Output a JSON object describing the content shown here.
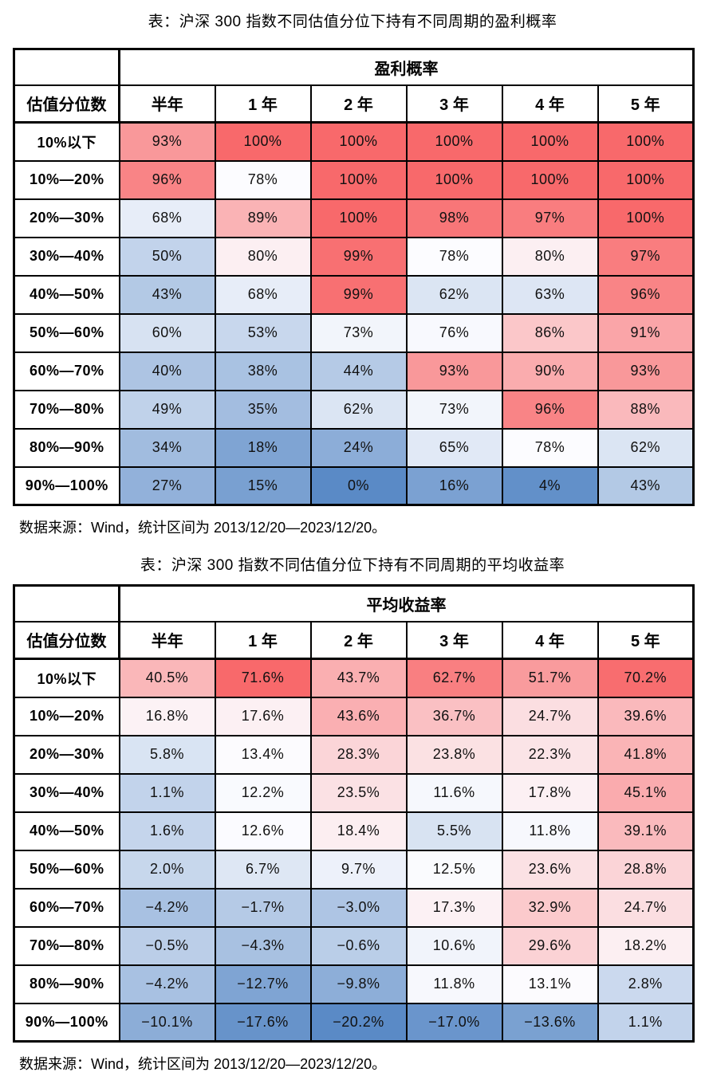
{
  "page": {
    "background": "#ffffff"
  },
  "heatmap_scale": {
    "min_color": "#5A8AC6",
    "mid_color": "#FCFCFF",
    "max_color": "#F8696B",
    "midpoint": "median"
  },
  "chart_data": [
    {
      "type": "heatmap",
      "title": "表：沪深 300 指数不同估值分位下持有不同周期的盈利概率",
      "group_header": "盈利概率",
      "corner_label": "",
      "row_header_label": "估值分位数",
      "columns": [
        "半年",
        "1 年",
        "2 年",
        "3 年",
        "4 年",
        "5 年"
      ],
      "rows": [
        "10%以下",
        "10%—20%",
        "20%—30%",
        "30%—40%",
        "40%—50%",
        "50%—60%",
        "60%—70%",
        "70%—80%",
        "80%—90%",
        "90%—100%"
      ],
      "values": [
        [
          93,
          100,
          100,
          100,
          100,
          100
        ],
        [
          96,
          78,
          100,
          100,
          100,
          100
        ],
        [
          68,
          89,
          100,
          98,
          97,
          100
        ],
        [
          50,
          80,
          99,
          78,
          80,
          97
        ],
        [
          43,
          68,
          99,
          62,
          63,
          96
        ],
        [
          60,
          53,
          73,
          76,
          86,
          91
        ],
        [
          40,
          38,
          44,
          93,
          90,
          93
        ],
        [
          49,
          35,
          62,
          73,
          96,
          88
        ],
        [
          34,
          18,
          24,
          65,
          78,
          62
        ],
        [
          27,
          15,
          0,
          16,
          4,
          43
        ]
      ],
      "labels": [
        [
          "93%",
          "100%",
          "100%",
          "100%",
          "100%",
          "100%"
        ],
        [
          "96%",
          "78%",
          "100%",
          "100%",
          "100%",
          "100%"
        ],
        [
          "68%",
          "89%",
          "100%",
          "98%",
          "97%",
          "100%"
        ],
        [
          "50%",
          "80%",
          "99%",
          "78%",
          "80%",
          "97%"
        ],
        [
          "43%",
          "68%",
          "99%",
          "62%",
          "63%",
          "96%"
        ],
        [
          "60%",
          "53%",
          "73%",
          "76%",
          "86%",
          "91%"
        ],
        [
          "40%",
          "38%",
          "44%",
          "93%",
          "90%",
          "93%"
        ],
        [
          "49%",
          "35%",
          "62%",
          "73%",
          "96%",
          "88%"
        ],
        [
          "34%",
          "18%",
          "24%",
          "65%",
          "78%",
          "62%"
        ],
        [
          "27%",
          "15%",
          "0%",
          "16%",
          "4%",
          "43%"
        ]
      ],
      "source": "数据来源：Wind，统计区间为 2013/12/20—2023/12/20。"
    },
    {
      "type": "heatmap",
      "title": "表：沪深 300 指数不同估值分位下持有不同周期的平均收益率",
      "group_header": "平均收益率",
      "corner_label": "",
      "row_header_label": "估值分位数",
      "columns": [
        "半年",
        "1 年",
        "2 年",
        "3 年",
        "4 年",
        "5 年"
      ],
      "rows": [
        "10%以下",
        "10%—20%",
        "20%—30%",
        "30%—40%",
        "40%—50%",
        "50%—60%",
        "60%—70%",
        "70%—80%",
        "80%—90%",
        "90%—100%"
      ],
      "values": [
        [
          40.5,
          71.6,
          43.7,
          62.7,
          51.7,
          70.2
        ],
        [
          16.8,
          17.6,
          43.6,
          36.7,
          24.7,
          39.6
        ],
        [
          5.8,
          13.4,
          28.3,
          23.8,
          22.3,
          41.8
        ],
        [
          1.1,
          12.2,
          23.5,
          11.6,
          17.8,
          45.1
        ],
        [
          1.6,
          12.6,
          18.4,
          5.5,
          11.8,
          39.1
        ],
        [
          2.0,
          6.7,
          9.7,
          12.5,
          23.6,
          28.8
        ],
        [
          -4.2,
          -1.7,
          -3.0,
          17.3,
          32.9,
          24.7
        ],
        [
          -0.5,
          -4.3,
          -0.6,
          10.6,
          29.6,
          18.2
        ],
        [
          -4.2,
          -12.7,
          -9.8,
          11.8,
          13.1,
          2.8
        ],
        [
          -10.1,
          -17.6,
          -20.2,
          -17.0,
          -13.6,
          1.1
        ]
      ],
      "labels": [
        [
          "40.5%",
          "71.6%",
          "43.7%",
          "62.7%",
          "51.7%",
          "70.2%"
        ],
        [
          "16.8%",
          "17.6%",
          "43.6%",
          "36.7%",
          "24.7%",
          "39.6%"
        ],
        [
          "5.8%",
          "13.4%",
          "28.3%",
          "23.8%",
          "22.3%",
          "41.8%"
        ],
        [
          "1.1%",
          "12.2%",
          "23.5%",
          "11.6%",
          "17.8%",
          "45.1%"
        ],
        [
          "1.6%",
          "12.6%",
          "18.4%",
          "5.5%",
          "11.8%",
          "39.1%"
        ],
        [
          "2.0%",
          "6.7%",
          "9.7%",
          "12.5%",
          "23.6%",
          "28.8%"
        ],
        [
          "−4.2%",
          "−1.7%",
          "−3.0%",
          "17.3%",
          "32.9%",
          "24.7%"
        ],
        [
          "−0.5%",
          "−4.3%",
          "−0.6%",
          "10.6%",
          "29.6%",
          "18.2%"
        ],
        [
          "−4.2%",
          "−12.7%",
          "−9.8%",
          "11.8%",
          "13.1%",
          "2.8%"
        ],
        [
          "−10.1%",
          "−17.6%",
          "−20.2%",
          "−17.0%",
          "−13.6%",
          "1.1%"
        ]
      ],
      "source": "数据来源：Wind，统计区间为 2013/12/20—2023/12/20。"
    }
  ]
}
